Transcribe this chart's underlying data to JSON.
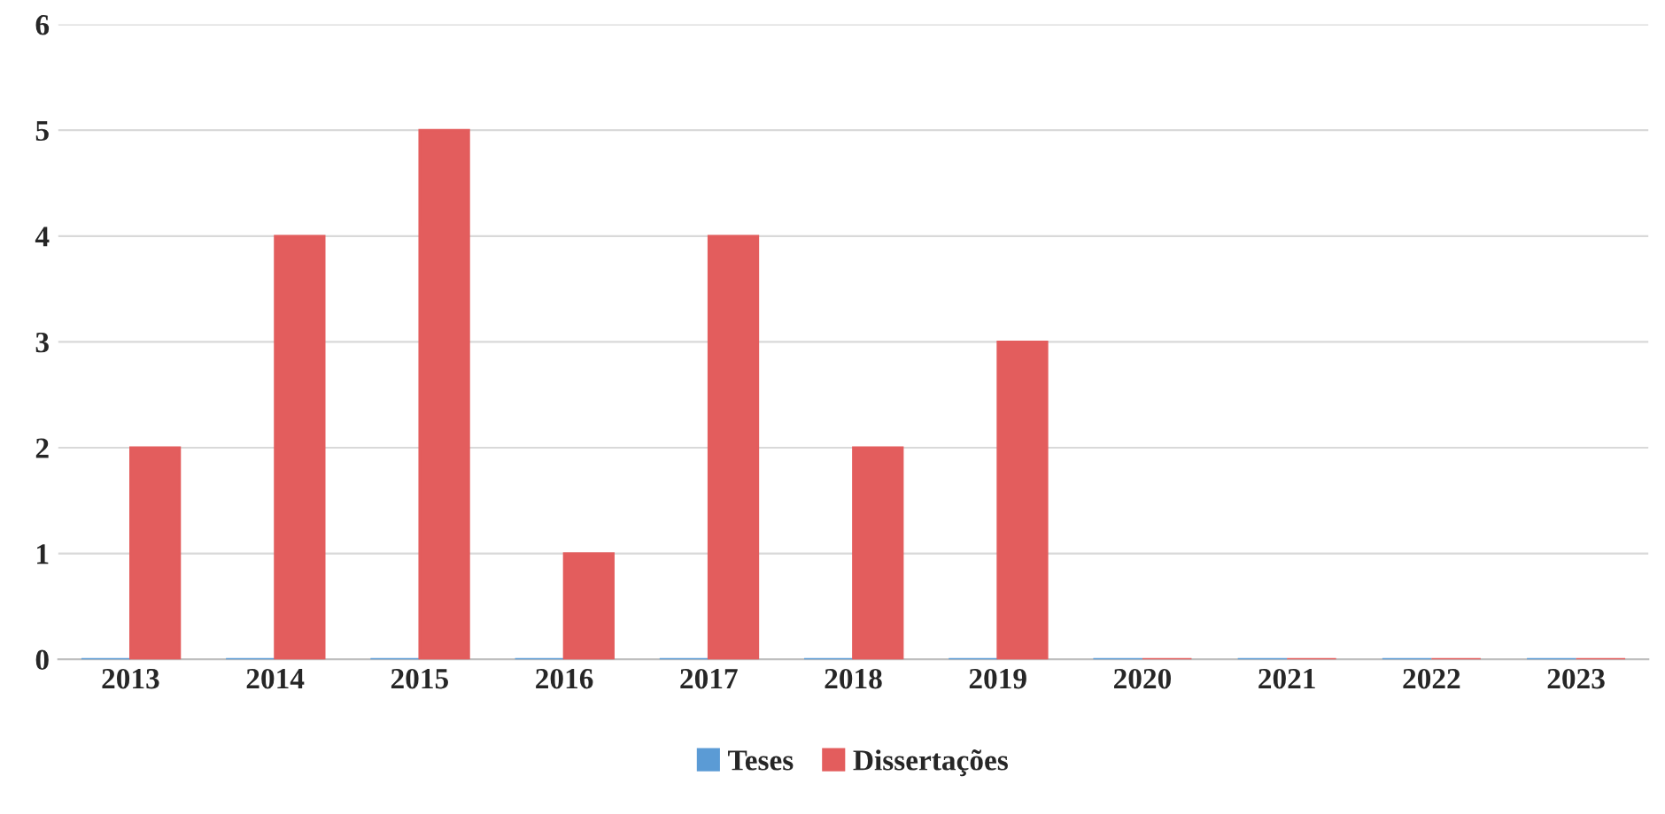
{
  "chart_data": {
    "type": "bar",
    "categories": [
      "2013",
      "2014",
      "2015",
      "2016",
      "2017",
      "2018",
      "2019",
      "2020",
      "2021",
      "2022",
      "2023"
    ],
    "series": [
      {
        "name": "Teses",
        "color": "#5b9bd5",
        "values": [
          0,
          0,
          0,
          0,
          0,
          0,
          0,
          0,
          0,
          0,
          0
        ]
      },
      {
        "name": "Dissertações",
        "color": "#e35d5d",
        "values": [
          2,
          4,
          5,
          1,
          4,
          2,
          3,
          0,
          0,
          0,
          0
        ]
      }
    ],
    "ylim": [
      0,
      6
    ],
    "yticks": [
      0,
      1,
      2,
      3,
      4,
      5,
      6
    ],
    "grid": "y",
    "legend": "bottom"
  }
}
